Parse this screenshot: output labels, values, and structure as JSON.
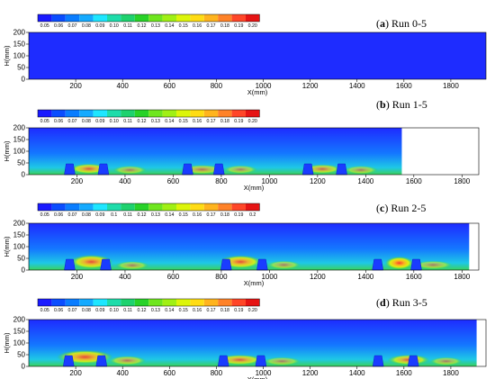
{
  "colors": {
    "colorbar": [
      "#1a1aff",
      "#0a4dff",
      "#0a7dff",
      "#14aaff",
      "#1ee6ff",
      "#1edcaa",
      "#1ed26e",
      "#28d228",
      "#6ee61e",
      "#a0f014",
      "#dcf50a",
      "#ffdc14",
      "#ffb41e",
      "#ff8228",
      "#ff4628",
      "#e61414"
    ],
    "background_field": "#1e2cff"
  },
  "chart_data": [
    {
      "type": "heatmap",
      "title": {
        "letter": "a",
        "text": "Run 0-5",
        "open": "(",
        "close": ")"
      },
      "xlabel": "X(mm)",
      "ylabel": "H(mm)",
      "xlim": [
        0,
        1950
      ],
      "ylim": [
        0,
        200
      ],
      "xticks": [
        "200",
        "400",
        "600",
        "800",
        "1000",
        "1200",
        "1400",
        "1600",
        "1800"
      ],
      "yticks": [
        "0",
        "50",
        "100",
        "150",
        "200"
      ],
      "colorbar": {
        "ticks": [
          "0.05",
          "0.06",
          "0.07",
          "0.08",
          "0.09",
          "0.10",
          "0.11",
          "0.12",
          "0.13",
          "0.14",
          "0.15",
          "0.16",
          "0.17",
          "0.18",
          "0.19",
          "0.20"
        ]
      },
      "field": {
        "x_range": [
          0,
          1950
        ],
        "obstacles": [],
        "hotspots": []
      }
    },
    {
      "type": "heatmap",
      "title": {
        "letter": "b",
        "text": "Run 1-5",
        "open": "(",
        "close": ")"
      },
      "xlabel": "X(mm)",
      "ylabel": "H(mm)",
      "xlim": [
        0,
        1870
      ],
      "ylim": [
        0,
        200
      ],
      "xticks": [
        "200",
        "400",
        "600",
        "800",
        "1000",
        "1200",
        "1400",
        "1600",
        "1800"
      ],
      "yticks": [
        "0",
        "50",
        "100",
        "150",
        "200"
      ],
      "colorbar": {
        "ticks": [
          "0.05",
          "0.06",
          "0.07",
          "0.08",
          "0.09",
          "0.10",
          "0.11",
          "0.12",
          "0.13",
          "0.14",
          "0.15",
          "0.16",
          "0.17",
          "0.18",
          "0.19",
          "0.20"
        ]
      },
      "field": {
        "x_range": [
          0,
          1550
        ],
        "obstacles": [
          170,
          310,
          660,
          790,
          1160,
          1300
        ],
        "hotspots": [
          {
            "x": 250,
            "y": 25,
            "w": 80,
            "h": 22,
            "level": 0.18
          },
          {
            "x": 420,
            "y": 20,
            "w": 70,
            "h": 18,
            "level": 0.15
          },
          {
            "x": 720,
            "y": 22,
            "w": 90,
            "h": 20,
            "level": 0.16
          },
          {
            "x": 880,
            "y": 22,
            "w": 70,
            "h": 18,
            "level": 0.15
          },
          {
            "x": 1220,
            "y": 24,
            "w": 80,
            "h": 20,
            "level": 0.17
          },
          {
            "x": 1380,
            "y": 20,
            "w": 70,
            "h": 18,
            "level": 0.15
          }
        ]
      }
    },
    {
      "type": "heatmap",
      "title": {
        "letter": "c",
        "text": "Run 2-5",
        "open": "(",
        "close": ")"
      },
      "xlabel": "X(mm)",
      "ylabel": "H(mm)",
      "xlim": [
        0,
        1870
      ],
      "ylim": [
        0,
        200
      ],
      "xticks": [
        "200",
        "400",
        "600",
        "800",
        "1000",
        "1200",
        "1400",
        "1600",
        "1800"
      ],
      "yticks": [
        "0",
        "50",
        "100",
        "150",
        "200"
      ],
      "colorbar": {
        "ticks": [
          "0.05",
          "0.06",
          "0.07",
          "0.08",
          "0.09",
          "0.1",
          "0.11",
          "0.12",
          "0.13",
          "0.14",
          "0.15",
          "0.16",
          "0.17",
          "0.18",
          "0.19",
          "0.2"
        ]
      },
      "field": {
        "x_range": [
          0,
          1830
        ],
        "obstacles": [
          170,
          320,
          820,
          970,
          1450,
          1610
        ],
        "hotspots": [
          {
            "x": 260,
            "y": 35,
            "w": 90,
            "h": 30,
            "level": 0.19
          },
          {
            "x": 430,
            "y": 20,
            "w": 70,
            "h": 18,
            "level": 0.15
          },
          {
            "x": 880,
            "y": 35,
            "w": 90,
            "h": 28,
            "level": 0.19
          },
          {
            "x": 1060,
            "y": 22,
            "w": 70,
            "h": 18,
            "level": 0.15
          },
          {
            "x": 1540,
            "y": 30,
            "w": 60,
            "h": 28,
            "level": 0.2
          },
          {
            "x": 1680,
            "y": 22,
            "w": 80,
            "h": 18,
            "level": 0.15
          }
        ]
      }
    },
    {
      "type": "heatmap",
      "title": {
        "letter": "d",
        "text": "Run 3-5",
        "open": "(",
        "close": ")"
      },
      "xlabel": "X(mm)",
      "ylabel": "H(mm)",
      "xlim": [
        0,
        1950
      ],
      "ylim": [
        0,
        200
      ],
      "xticks": [
        "200",
        "400",
        "600",
        "800",
        "1000",
        "1200",
        "1400",
        "1600",
        "1800"
      ],
      "yticks": [
        "0",
        "50",
        "100",
        "150",
        "200"
      ],
      "colorbar": {
        "ticks": [
          "0.05",
          "0.06",
          "0.07",
          "0.08",
          "0.09",
          "0.10",
          "0.11",
          "0.12",
          "0.13",
          "0.14",
          "0.15",
          "0.16",
          "0.17",
          "0.18",
          "0.19",
          "0.20"
        ]
      },
      "field": {
        "x_range": [
          0,
          1910
        ],
        "obstacles": [
          170,
          310,
          830,
          990,
          1490,
          1640
        ],
        "hotspots": [
          {
            "x": 240,
            "y": 40,
            "w": 120,
            "h": 30,
            "level": 0.19
          },
          {
            "x": 420,
            "y": 25,
            "w": 80,
            "h": 20,
            "level": 0.16
          },
          {
            "x": 900,
            "y": 28,
            "w": 100,
            "h": 22,
            "level": 0.18
          },
          {
            "x": 1080,
            "y": 22,
            "w": 80,
            "h": 18,
            "level": 0.15
          },
          {
            "x": 1620,
            "y": 28,
            "w": 90,
            "h": 22,
            "level": 0.18
          },
          {
            "x": 1780,
            "y": 22,
            "w": 70,
            "h": 18,
            "level": 0.15
          }
        ]
      }
    }
  ]
}
